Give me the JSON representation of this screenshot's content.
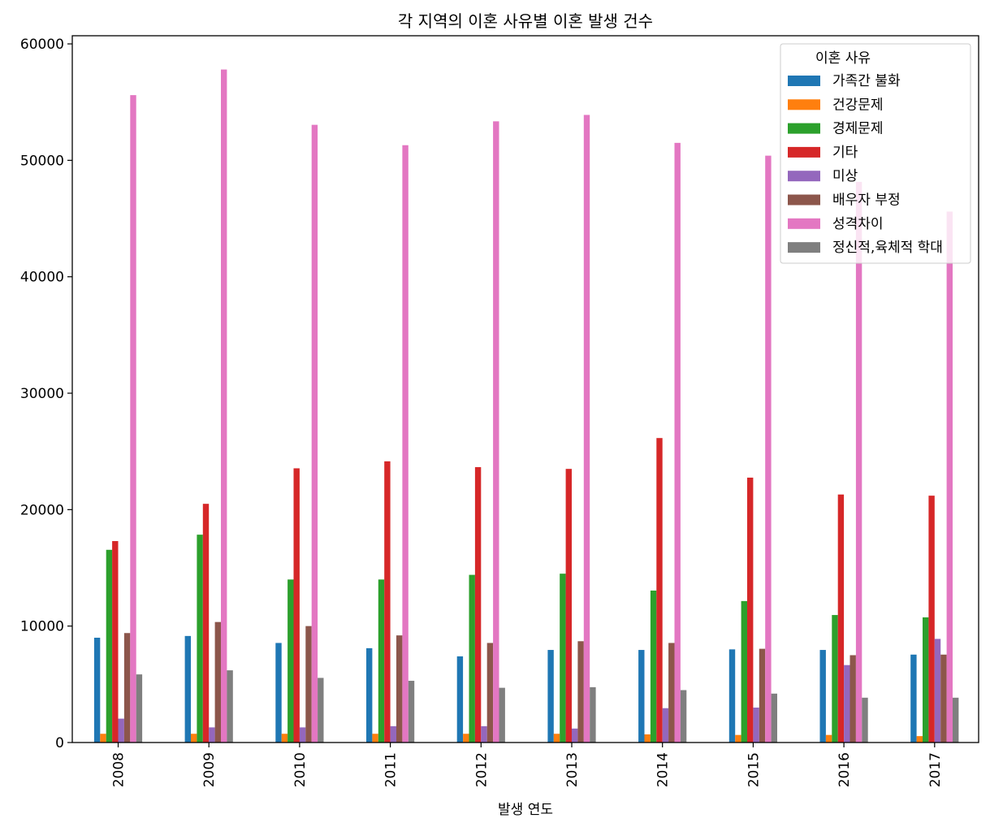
{
  "chart_data": {
    "type": "bar",
    "title": "각 지역의 이혼 사유별 이혼 발생 건수",
    "xlabel": "발생 연도",
    "ylabel": "",
    "categories": [
      "2008",
      "2009",
      "2010",
      "2011",
      "2012",
      "2013",
      "2014",
      "2015",
      "2016",
      "2017"
    ],
    "ylim": [
      0,
      60700
    ],
    "yticks": [
      0,
      10000,
      20000,
      30000,
      40000,
      50000,
      60000
    ],
    "legend_title": "이혼 사유",
    "legend_position": "top-right",
    "grid": false,
    "series": [
      {
        "name": "가족간 불화",
        "color": "#1f77b4",
        "values": [
          9000,
          9150,
          8550,
          8100,
          7400,
          7950,
          7950,
          8000,
          7950,
          7550
        ]
      },
      {
        "name": "건강문제",
        "color": "#ff7f0e",
        "values": [
          750,
          750,
          750,
          750,
          750,
          750,
          700,
          650,
          650,
          550
        ]
      },
      {
        "name": "경제문제",
        "color": "#2ca02c",
        "values": [
          16550,
          17850,
          14000,
          14000,
          14400,
          14500,
          13050,
          12150,
          10950,
          10750
        ]
      },
      {
        "name": "기타",
        "color": "#d62728",
        "values": [
          17300,
          20500,
          23550,
          24150,
          23650,
          23500,
          26150,
          22750,
          21300,
          21200
        ]
      },
      {
        "name": "미상",
        "color": "#9467bd",
        "values": [
          2050,
          1300,
          1300,
          1400,
          1400,
          1200,
          2950,
          3000,
          6650,
          8900
        ]
      },
      {
        "name": "배우자 부정",
        "color": "#8c564b",
        "values": [
          9400,
          10350,
          10000,
          9200,
          8550,
          8700,
          8550,
          8050,
          7500,
          7550
        ]
      },
      {
        "name": "성격차이",
        "color": "#e377c2",
        "values": [
          55600,
          57800,
          53050,
          51300,
          53350,
          53900,
          51500,
          50400,
          48150,
          45600
        ]
      },
      {
        "name": "정신적,육체적 학대",
        "color": "#7f7f7f",
        "values": [
          5850,
          6200,
          5550,
          5300,
          4700,
          4750,
          4500,
          4200,
          3850,
          3850
        ]
      }
    ]
  }
}
